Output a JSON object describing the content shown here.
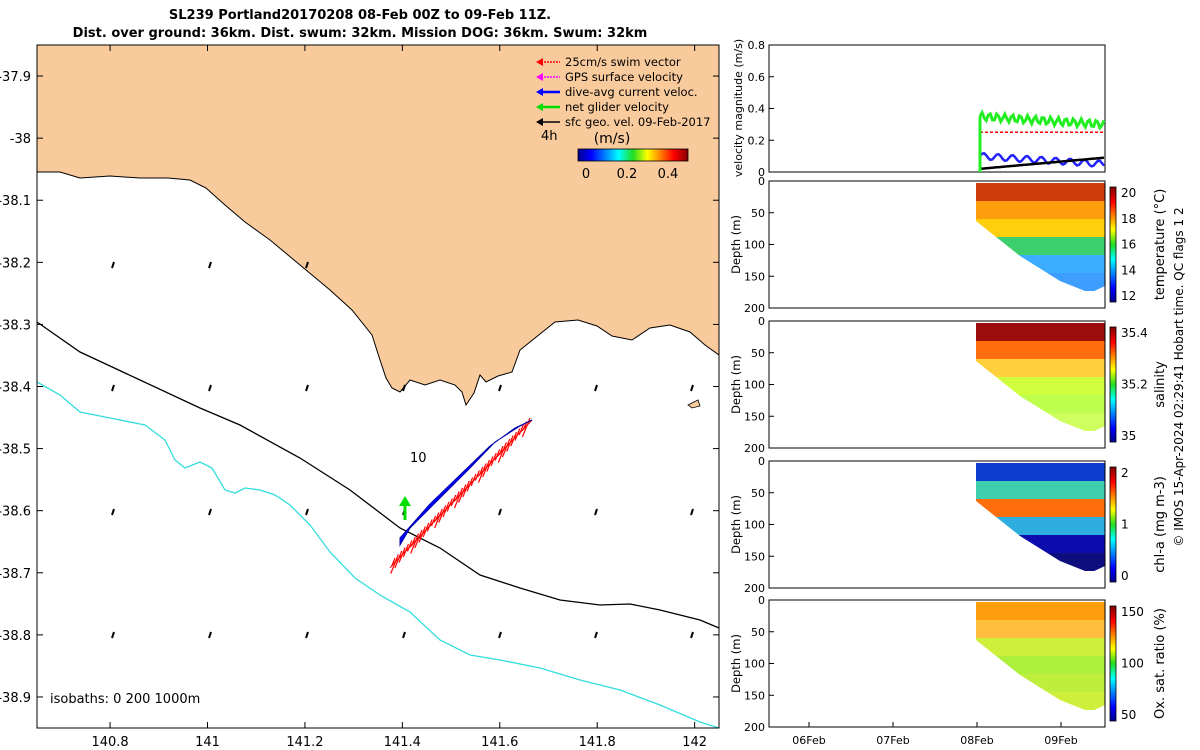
{
  "title_line1": "SL239 Portland20170208 08-Feb 00Z to 09-Feb 11Z.",
  "title_line2": "Dist. over ground: 36km. Dist. swum: 32km. Mission DOG: 36km. Swum: 32km",
  "map": {
    "x_ticks": [
      "140.8",
      "141",
      "141.2",
      "141.4",
      "141.6",
      "141.8",
      "142"
    ],
    "y_ticks": [
      "-37.9",
      "-38",
      "-38.1",
      "-38.2",
      "-38.3",
      "-38.4",
      "-38.5",
      "-38.6",
      "-38.7",
      "-38.8",
      "-38.9"
    ],
    "xlim": [
      140.65,
      142.05
    ],
    "ylim": [
      -38.95,
      -37.85
    ],
    "isobath_label": "isobaths: 0   200  1000m",
    "depth_label": "10",
    "time_label": "4h",
    "legend": [
      {
        "label": "25cm/s swim vector",
        "color": "#ff0000"
      },
      {
        "label": "GPS surface velocity",
        "color": "#ff00ff"
      },
      {
        "label": "dive-avg current veloc.",
        "color": "#0000ff"
      },
      {
        "label": "net glider velocity",
        "color": "#00dd00"
      },
      {
        "label": "sfc geo. vel. 09-Feb-2017",
        "color": "#000000"
      }
    ],
    "speed_cbar": {
      "label": "(m/s)",
      "ticks": [
        "0",
        "0.2",
        "0.4"
      ]
    },
    "colors": {
      "land": "#f9cb9c",
      "isobath_200": "#000000",
      "isobath_1000": "#33dddd",
      "track": "#0000ff",
      "swim": "#ff0000",
      "net": "#00dd00"
    }
  },
  "side_panels": {
    "time_ticks": [
      "06Feb",
      "07Feb",
      "08Feb",
      "09Feb"
    ],
    "velocity": {
      "ylabel": "velocity magnitude (m/s)",
      "y_ticks": [
        "0",
        "0.2",
        "0.4",
        "0.6",
        "0.8"
      ],
      "ylim": [
        0,
        0.8
      ]
    },
    "depth_label": "Depth (m)",
    "depth_ticks": [
      "0",
      "50",
      "100",
      "150",
      "200"
    ],
    "profiles": [
      {
        "name": "temperature",
        "cbar_label": "temperature (°C)",
        "cbar_ticks": [
          "20",
          "18",
          "16",
          "14",
          "12"
        ]
      },
      {
        "name": "salinity",
        "cbar_label": "salinity",
        "cbar_ticks": [
          "35.4",
          "35.2",
          "35"
        ]
      },
      {
        "name": "chla",
        "cbar_label": "chl-a (mg m-3)",
        "cbar_ticks": [
          "2",
          "1",
          "0"
        ]
      },
      {
        "name": "oxsat",
        "cbar_label": "Ox. sat. ratio (%)",
        "cbar_ticks": [
          "150",
          "100",
          "50"
        ]
      }
    ],
    "footer": "© IMOS 15-Apr-2024 02:29:41 Hobart time. QC flags 1  2"
  },
  "chart_data": [
    {
      "type": "scatter",
      "title": "SL239 Portland20170208 08-Feb 00Z to 09-Feb 11Z.",
      "xlabel": "",
      "ylabel": "",
      "xlim": [
        140.65,
        142.05
      ],
      "ylim": [
        -38.95,
        -37.85
      ],
      "series": [
        {
          "name": "dive-avg current veloc.",
          "x": [
            141.4,
            141.46,
            141.52,
            141.58,
            141.63,
            141.67
          ],
          "y": [
            -38.64,
            -38.6,
            -38.55,
            -38.5,
            -38.47,
            -38.45
          ]
        }
      ]
    },
    {
      "type": "line",
      "ylabel": "velocity magnitude (m/s)",
      "x": [
        "08Feb",
        "09Feb"
      ],
      "ylim": [
        0,
        0.8
      ],
      "series": [
        {
          "name": "net glider velocity",
          "values": [
            0.35,
            0.3
          ]
        },
        {
          "name": "25cm/s swim vector",
          "values": [
            0.25,
            0.25
          ]
        },
        {
          "name": "dive-avg current veloc.",
          "values": [
            0.1,
            0.05
          ]
        },
        {
          "name": "sfc geo. vel. 09-Feb-2017",
          "values": [
            0.02,
            0.09
          ]
        }
      ]
    },
    {
      "type": "heatmap",
      "ylabel": "Depth (m)",
      "colorbar": "temperature (°C)",
      "ylim": [
        200,
        0
      ]
    },
    {
      "type": "heatmap",
      "ylabel": "Depth (m)",
      "colorbar": "salinity",
      "ylim": [
        200,
        0
      ]
    },
    {
      "type": "heatmap",
      "ylabel": "Depth (m)",
      "colorbar": "chl-a (mg m-3)",
      "ylim": [
        200,
        0
      ]
    },
    {
      "type": "heatmap",
      "ylabel": "Depth (m)",
      "colorbar": "Ox. sat. ratio (%)",
      "ylim": [
        200,
        0
      ]
    }
  ]
}
